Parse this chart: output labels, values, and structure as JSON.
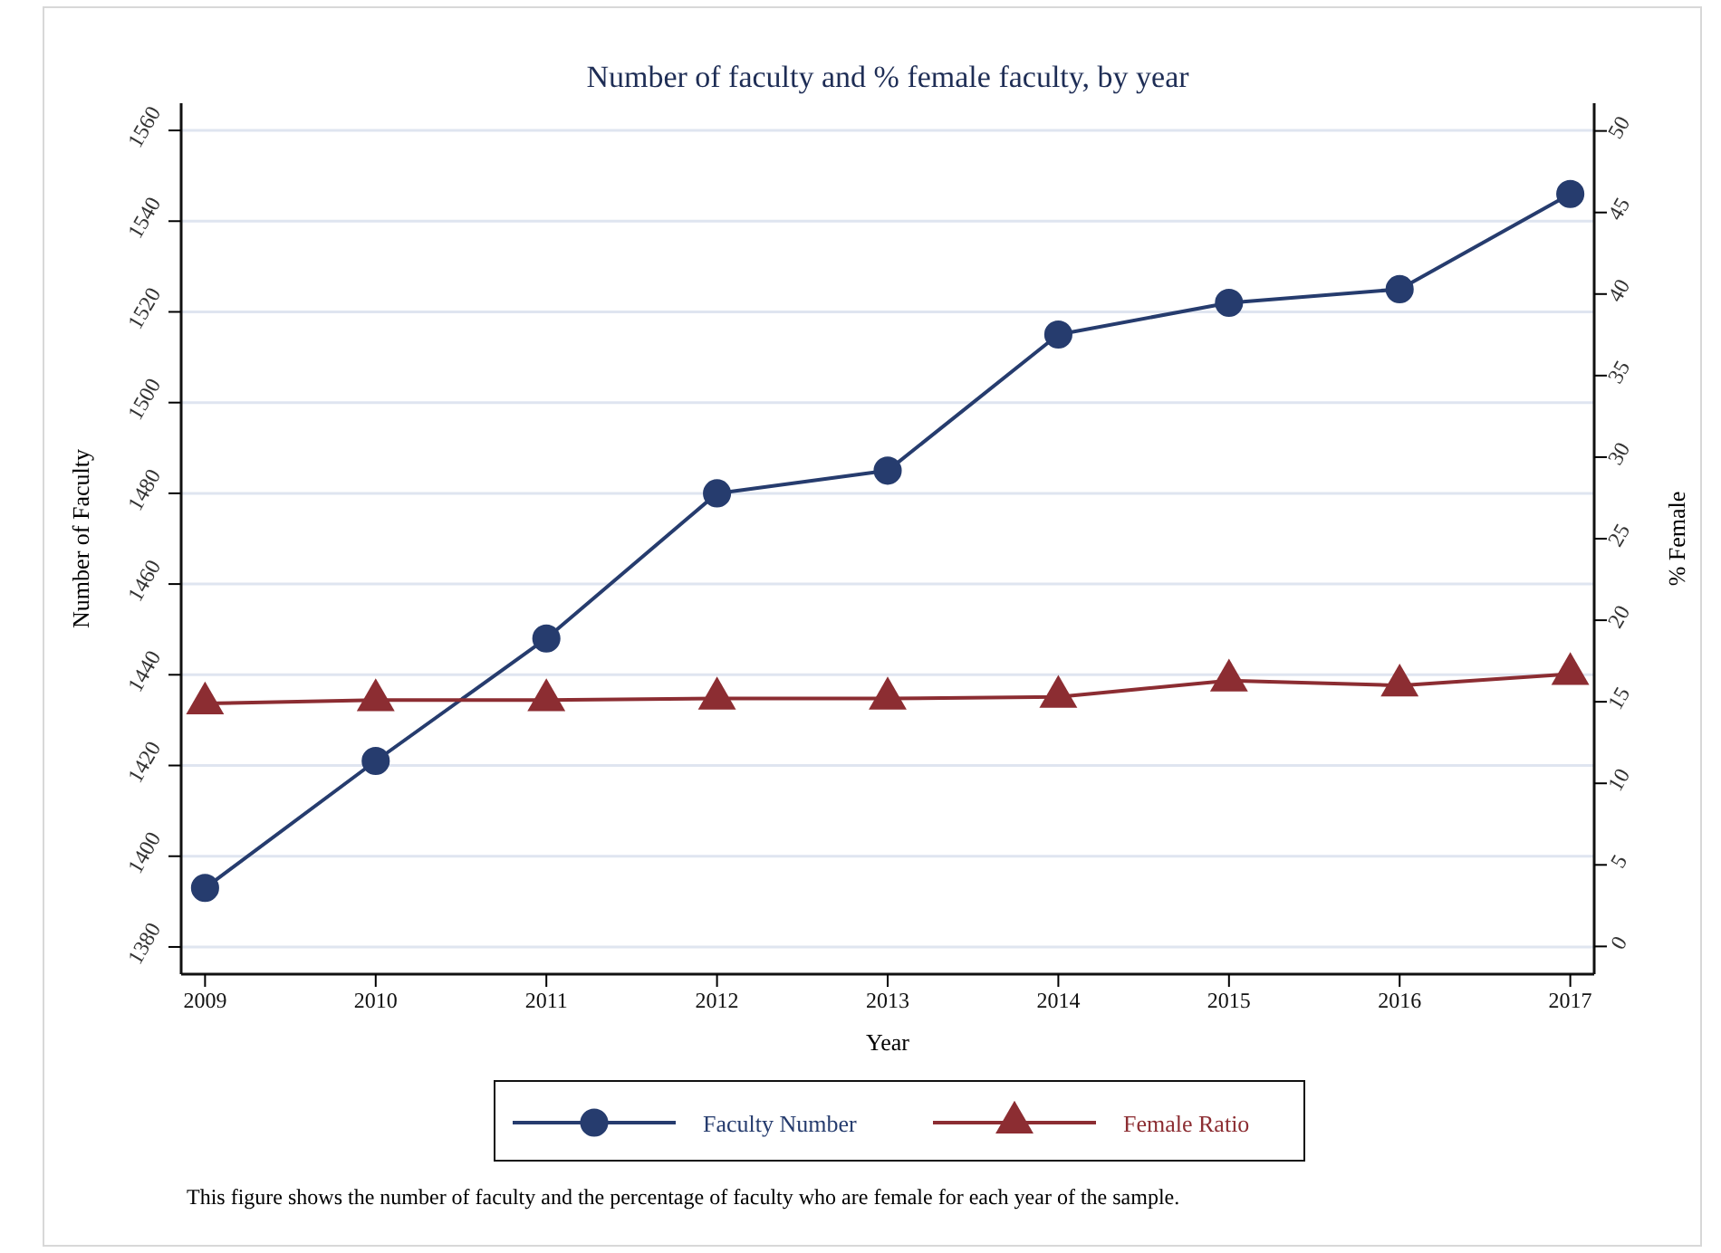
{
  "chart_data": {
    "type": "line",
    "title": "Number of faculty and % female faculty, by year",
    "xlabel": "Year",
    "ylabel": "Number of Faculty",
    "y2label": "% Female",
    "x": [
      2009,
      2010,
      2011,
      2012,
      2013,
      2014,
      2015,
      2016,
      2017
    ],
    "series": [
      {
        "name": "Faculty Number",
        "color": "#263c6e",
        "marker": "circle",
        "values": [
          1393,
          1421,
          1448,
          1480,
          1485,
          1515,
          1522,
          1525,
          1546
        ]
      },
      {
        "name": "Female Ratio",
        "color": "#8c2d32",
        "marker": "triangle",
        "axis": "y2",
        "values": [
          14.9,
          15.1,
          15.1,
          15.2,
          15.2,
          15.3,
          16.3,
          16.0,
          16.7
        ]
      }
    ],
    "xlim": [
      2008.86,
      2017.14
    ],
    "xticks": [
      2009,
      2010,
      2011,
      2012,
      2013,
      2014,
      2015,
      2016,
      2017
    ],
    "ylim": [
      1374,
      1566
    ],
    "yticks": [
      1380,
      1400,
      1420,
      1440,
      1460,
      1480,
      1500,
      1520,
      1540,
      1560
    ],
    "y2lim": [
      -1.7,
      51.7
    ],
    "y2ticks": [
      0,
      5,
      10,
      15,
      20,
      25,
      30,
      35,
      40,
      45,
      50
    ],
    "grid": "y",
    "legend": "bottom",
    "annotations": [
      "This figure shows the number of faculty and the percentage of faculty who are female for each year of the sample."
    ]
  }
}
